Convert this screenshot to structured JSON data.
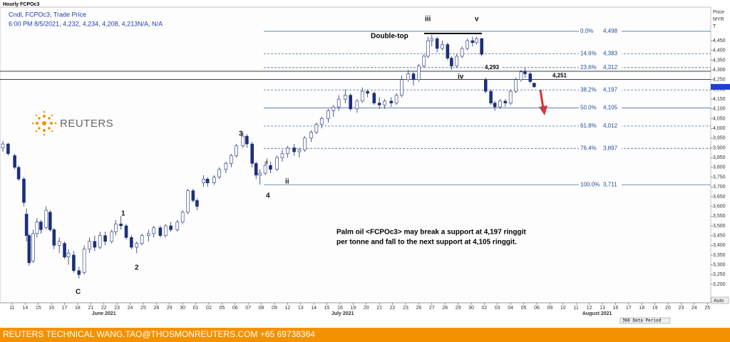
{
  "chart_data": {
    "type": "candlestick",
    "title": "Hourly FCPOc3",
    "subtitle": "Cndl, FCPOc3, Trade Price",
    "info": "6:00 PM 8/5/2021, 4,232, 4,234, 4,208, 4,213N/A, N/A",
    "axis_title": [
      "Price",
      "MYR",
      "T"
    ],
    "logo": "REUTERS",
    "color_up": "#ffffff",
    "color_down": "#1d2f7a",
    "outline": "#1d2f7a",
    "xlim": [
      -0.92,
      53.26
    ],
    "ylim": [
      3105,
      4622
    ],
    "xticks": [
      {
        "value": 0,
        "label": "11"
      },
      {
        "value": 1,
        "label": "14"
      },
      {
        "value": 2,
        "label": "15"
      },
      {
        "value": 3,
        "label": "16"
      },
      {
        "value": 4,
        "label": "17"
      },
      {
        "value": 5,
        "label": "18"
      },
      {
        "value": 6,
        "label": "21"
      },
      {
        "value": 7,
        "label": "22"
      },
      {
        "value": 8,
        "label": "23"
      },
      {
        "value": 9,
        "label": "24"
      },
      {
        "value": 10,
        "label": "25"
      },
      {
        "value": 11,
        "label": "28"
      },
      {
        "value": 12,
        "label": "29"
      },
      {
        "value": 13,
        "label": "30"
      },
      {
        "value": 14,
        "label": "01"
      },
      {
        "value": 15,
        "label": "02"
      },
      {
        "value": 16,
        "label": "05"
      },
      {
        "value": 17,
        "label": "06"
      },
      {
        "value": 18,
        "label": "07"
      },
      {
        "value": 19,
        "label": "08"
      },
      {
        "value": 20,
        "label": "09"
      },
      {
        "value": 21,
        "label": "12"
      },
      {
        "value": 22,
        "label": "13"
      },
      {
        "value": 23,
        "label": "14"
      },
      {
        "value": 24,
        "label": "15"
      },
      {
        "value": 25,
        "label": "16"
      },
      {
        "value": 26,
        "label": "19"
      },
      {
        "value": 27,
        "label": "20"
      },
      {
        "value": 28,
        "label": "21"
      },
      {
        "value": 29,
        "label": "22"
      },
      {
        "value": 30,
        "label": "23"
      },
      {
        "value": 31,
        "label": "26"
      },
      {
        "value": 32,
        "label": "27"
      },
      {
        "value": 33,
        "label": "28"
      },
      {
        "value": 34,
        "label": "29"
      },
      {
        "value": 35,
        "label": "30"
      },
      {
        "value": 36,
        "label": "02"
      },
      {
        "value": 37,
        "label": "03"
      },
      {
        "value": 38,
        "label": "04"
      },
      {
        "value": 39,
        "label": "05"
      },
      {
        "value": 40,
        "label": "06"
      },
      {
        "value": 41,
        "label": "09"
      },
      {
        "value": 42,
        "label": "10"
      },
      {
        "value": 43,
        "label": "11"
      },
      {
        "value": 44,
        "label": "12"
      },
      {
        "value": 45,
        "label": "13"
      },
      {
        "value": 46,
        "label": "16"
      },
      {
        "value": 47,
        "label": "17"
      },
      {
        "value": 48,
        "label": "18"
      },
      {
        "value": 49,
        "label": "19"
      },
      {
        "value": 50,
        "label": "20"
      },
      {
        "value": 51,
        "label": "23"
      },
      {
        "value": 52,
        "label": "24"
      },
      {
        "value": 53,
        "label": "25"
      }
    ],
    "months": [
      {
        "value": 7,
        "label": "June 2021"
      },
      {
        "value": 25.2,
        "label": "July 2021"
      },
      {
        "value": 44.6,
        "label": "August 2021"
      }
    ],
    "yticks": [
      {
        "value": 3200,
        "label": "3,200"
      },
      {
        "value": 3250,
        "label": "3,250"
      },
      {
        "value": 3300,
        "label": "3,300"
      },
      {
        "value": 3350,
        "label": "3,350"
      },
      {
        "value": 3400,
        "label": "3,400"
      },
      {
        "value": 3450,
        "label": "3,450"
      },
      {
        "value": 3500,
        "label": "3,500"
      },
      {
        "value": 3550,
        "label": "3,550"
      },
      {
        "value": 3600,
        "label": "3,600"
      },
      {
        "value": 3650,
        "label": "3,650"
      },
      {
        "value": 3700,
        "label": "3,700"
      },
      {
        "value": 3750,
        "label": "3,750"
      },
      {
        "value": 3800,
        "label": "3,800"
      },
      {
        "value": 3850,
        "label": "3,850"
      },
      {
        "value": 3900,
        "label": "3,900"
      },
      {
        "value": 3950,
        "label": "3,950"
      },
      {
        "value": 4000,
        "label": "4,000"
      },
      {
        "value": 4050,
        "label": "4,050"
      },
      {
        "value": 4100,
        "label": "4,100"
      },
      {
        "value": 4150,
        "label": "4,150"
      },
      {
        "value": 4200,
        "label": "4,200"
      },
      {
        "value": 4250,
        "label": "4,250"
      },
      {
        "value": 4300,
        "label": "4,300"
      },
      {
        "value": 4350,
        "label": "4,350"
      },
      {
        "value": 4400,
        "label": "4,400"
      },
      {
        "value": 4450,
        "label": "4,450"
      }
    ],
    "candles": [
      [
        -0.7,
        3900,
        3935,
        3880,
        3920
      ],
      [
        -0.3,
        3920,
        3925,
        3860,
        3870
      ],
      [
        0.2,
        3860,
        3870,
        3790,
        3800
      ],
      [
        0.5,
        3800,
        3810,
        3730,
        3740
      ],
      [
        0.9,
        3740,
        3750,
        3600,
        3620
      ],
      [
        1.1,
        3560,
        3590,
        3420,
        3450
      ],
      [
        1.3,
        3450,
        3460,
        3295,
        3310
      ],
      [
        1.6,
        3320,
        3480,
        3310,
        3460
      ],
      [
        1.9,
        3460,
        3540,
        3440,
        3520
      ],
      [
        2.2,
        3520,
        3530,
        3460,
        3480
      ],
      [
        2.6,
        3490,
        3600,
        3480,
        3580
      ],
      [
        2.9,
        3570,
        3580,
        3470,
        3480
      ],
      [
        3.2,
        3480,
        3490,
        3380,
        3400
      ],
      [
        3.6,
        3400,
        3440,
        3360,
        3420
      ],
      [
        4.0,
        3410,
        3420,
        3330,
        3340
      ],
      [
        4.3,
        3340,
        3380,
        3300,
        3360
      ],
      [
        4.7,
        3350,
        3370,
        3260,
        3270
      ],
      [
        5.1,
        3270,
        3290,
        3230,
        3250
      ],
      [
        5.5,
        3260,
        3400,
        3250,
        3380
      ],
      [
        5.9,
        3380,
        3440,
        3360,
        3420
      ],
      [
        6.3,
        3420,
        3450,
        3370,
        3390
      ],
      [
        6.7,
        3390,
        3470,
        3380,
        3450
      ],
      [
        7.1,
        3450,
        3470,
        3400,
        3420
      ],
      [
        7.6,
        3420,
        3480,
        3410,
        3470
      ],
      [
        7.9,
        3470,
        3530,
        3450,
        3510
      ],
      [
        8.3,
        3510,
        3550,
        3480,
        3500
      ],
      [
        8.7,
        3500,
        3510,
        3430,
        3440
      ],
      [
        9.1,
        3440,
        3450,
        3380,
        3390
      ],
      [
        9.5,
        3390,
        3420,
        3360,
        3410
      ],
      [
        9.9,
        3410,
        3460,
        3400,
        3450
      ],
      [
        10.4,
        3450,
        3480,
        3420,
        3460
      ],
      [
        10.8,
        3460,
        3500,
        3440,
        3490
      ],
      [
        11.3,
        3490,
        3500,
        3440,
        3450
      ],
      [
        11.7,
        3450,
        3510,
        3440,
        3500
      ],
      [
        12.1,
        3500,
        3520,
        3470,
        3480
      ],
      [
        12.6,
        3480,
        3530,
        3470,
        3520
      ],
      [
        13.0,
        3520,
        3580,
        3510,
        3570
      ],
      [
        13.4,
        3570,
        3690,
        3560,
        3680
      ],
      [
        13.8,
        3680,
        3690,
        3620,
        3630
      ],
      [
        14.1,
        3630,
        3640,
        3580,
        3600
      ],
      [
        14.6,
        3720,
        3760,
        3700,
        3740
      ],
      [
        14.9,
        3740,
        3750,
        3700,
        3720
      ],
      [
        15.4,
        3720,
        3760,
        3710,
        3750
      ],
      [
        15.8,
        3750,
        3800,
        3740,
        3790
      ],
      [
        16.3,
        3790,
        3830,
        3770,
        3820
      ],
      [
        16.7,
        3820,
        3870,
        3800,
        3860
      ],
      [
        17.1,
        3860,
        3920,
        3850,
        3910
      ],
      [
        17.6,
        3910,
        3980,
        3900,
        3960
      ],
      [
        17.9,
        3960,
        3970,
        3900,
        3920
      ],
      [
        18.3,
        3920,
        3930,
        3800,
        3820
      ],
      [
        18.6,
        3820,
        3830,
        3740,
        3760
      ],
      [
        18.9,
        3760,
        3790,
        3711,
        3770
      ],
      [
        19.3,
        3770,
        3830,
        3760,
        3810
      ],
      [
        19.7,
        3810,
        3830,
        3770,
        3790
      ],
      [
        20.2,
        3790,
        3860,
        3780,
        3850
      ],
      [
        20.6,
        3850,
        3890,
        3830,
        3870
      ],
      [
        21.0,
        3870,
        3910,
        3850,
        3900
      ],
      [
        21.5,
        3900,
        3920,
        3860,
        3880
      ],
      [
        21.9,
        3880,
        3900,
        3850,
        3890
      ],
      [
        22.3,
        3890,
        3960,
        3880,
        3950
      ],
      [
        22.8,
        3950,
        3990,
        3930,
        3980
      ],
      [
        23.2,
        3980,
        4030,
        3970,
        4020
      ],
      [
        23.6,
        4020,
        4060,
        4000,
        4050
      ],
      [
        24.1,
        4050,
        4100,
        4030,
        4090
      ],
      [
        24.5,
        4090,
        4120,
        4060,
        4110
      ],
      [
        24.9,
        4110,
        4170,
        4090,
        4150
      ],
      [
        25.4,
        4150,
        4200,
        4130,
        4170
      ],
      [
        25.8,
        4170,
        4180,
        4090,
        4100
      ],
      [
        26.3,
        4100,
        4150,
        4080,
        4140
      ],
      [
        26.7,
        4140,
        4210,
        4130,
        4190
      ],
      [
        27.1,
        4190,
        4200,
        4160,
        4180
      ],
      [
        27.6,
        4180,
        4190,
        4120,
        4130
      ],
      [
        28.0,
        4130,
        4160,
        4100,
        4120
      ],
      [
        28.4,
        4120,
        4150,
        4100,
        4140
      ],
      [
        28.9,
        4140,
        4160,
        4110,
        4130
      ],
      [
        29.3,
        4130,
        4180,
        4120,
        4170
      ],
      [
        29.7,
        4170,
        4270,
        4160,
        4250
      ],
      [
        30.2,
        4250,
        4300,
        4240,
        4280
      ],
      [
        30.6,
        4280,
        4290,
        4220,
        4250
      ],
      [
        31.0,
        4250,
        4330,
        4240,
        4320
      ],
      [
        31.4,
        4320,
        4380,
        4310,
        4370
      ],
      [
        31.7,
        4370,
        4470,
        4360,
        4450
      ],
      [
        32.0,
        4450,
        4480,
        4420,
        4460
      ],
      [
        32.4,
        4460,
        4470,
        4390,
        4410
      ],
      [
        32.8,
        4410,
        4450,
        4400,
        4430
      ],
      [
        33.2,
        4430,
        4440,
        4350,
        4360
      ],
      [
        33.5,
        4360,
        4370,
        4300,
        4320
      ],
      [
        33.9,
        4320,
        4380,
        4310,
        4370
      ],
      [
        34.3,
        4370,
        4420,
        4360,
        4410
      ],
      [
        34.7,
        4410,
        4460,
        4400,
        4450
      ],
      [
        35.1,
        4450,
        4470,
        4420,
        4440
      ],
      [
        35.4,
        4440,
        4470,
        4430,
        4460
      ],
      [
        35.8,
        4460,
        4465,
        4370,
        4380
      ],
      [
        36.1,
        4250,
        4260,
        4180,
        4190
      ],
      [
        36.5,
        4190,
        4200,
        4120,
        4130
      ],
      [
        36.8,
        4130,
        4140,
        4090,
        4110
      ],
      [
        37.2,
        4110,
        4150,
        4100,
        4140
      ],
      [
        37.6,
        4140,
        4150,
        4110,
        4130
      ],
      [
        38.0,
        4130,
        4200,
        4120,
        4190
      ],
      [
        38.4,
        4190,
        4260,
        4180,
        4250
      ],
      [
        38.8,
        4250,
        4300,
        4240,
        4290
      ],
      [
        39.1,
        4290,
        4310,
        4260,
        4280
      ],
      [
        39.5,
        4280,
        4290,
        4230,
        4240
      ],
      [
        39.8,
        4232,
        4234,
        4208,
        4213
      ]
    ],
    "fib": [
      {
        "label": "0.0%",
        "value": 4498,
        "value_label": "4,498",
        "style": "solid"
      },
      {
        "label": "14.6%",
        "value": 4383,
        "value_label": "4,383",
        "style": "dashed"
      },
      {
        "label": "23.6%",
        "value": 4312,
        "value_label": "4,312",
        "style": "dashed"
      },
      {
        "label": "38.2%",
        "value": 4197,
        "value_label": "4,197",
        "style": "dashed"
      },
      {
        "label": "50.0%",
        "value": 4105,
        "value_label": "4,105",
        "style": "solid"
      },
      {
        "label": "61.8%",
        "value": 4012,
        "value_label": "4,012",
        "style": "dashed"
      },
      {
        "label": "76.4%",
        "value": 3897,
        "value_label": "3,897",
        "style": "dashed"
      },
      {
        "label": "100.0%",
        "value": 3711,
        "value_label": "3,711",
        "style": "solid"
      }
    ],
    "levels": [
      {
        "value": 4293,
        "label": "4,293"
      },
      {
        "value": 4251,
        "label": "4,251"
      }
    ],
    "annotations": [
      "Double-top",
      "iii",
      "v",
      "iv",
      "i",
      "ii",
      "1",
      "2",
      "3",
      "4",
      "C"
    ],
    "note": [
      "Palm oil <FCPOc3> may break a support at 4,197 ringgit",
      "per tonne and fall to the next support at 4,105 ringgit."
    ],
    "data_period": "366 Data Period",
    "auto": "Auto",
    "footer": "REUTERS TECHNICAL  WANG.TAO@THOSMONREUTERS.COM  +65 69738364"
  }
}
